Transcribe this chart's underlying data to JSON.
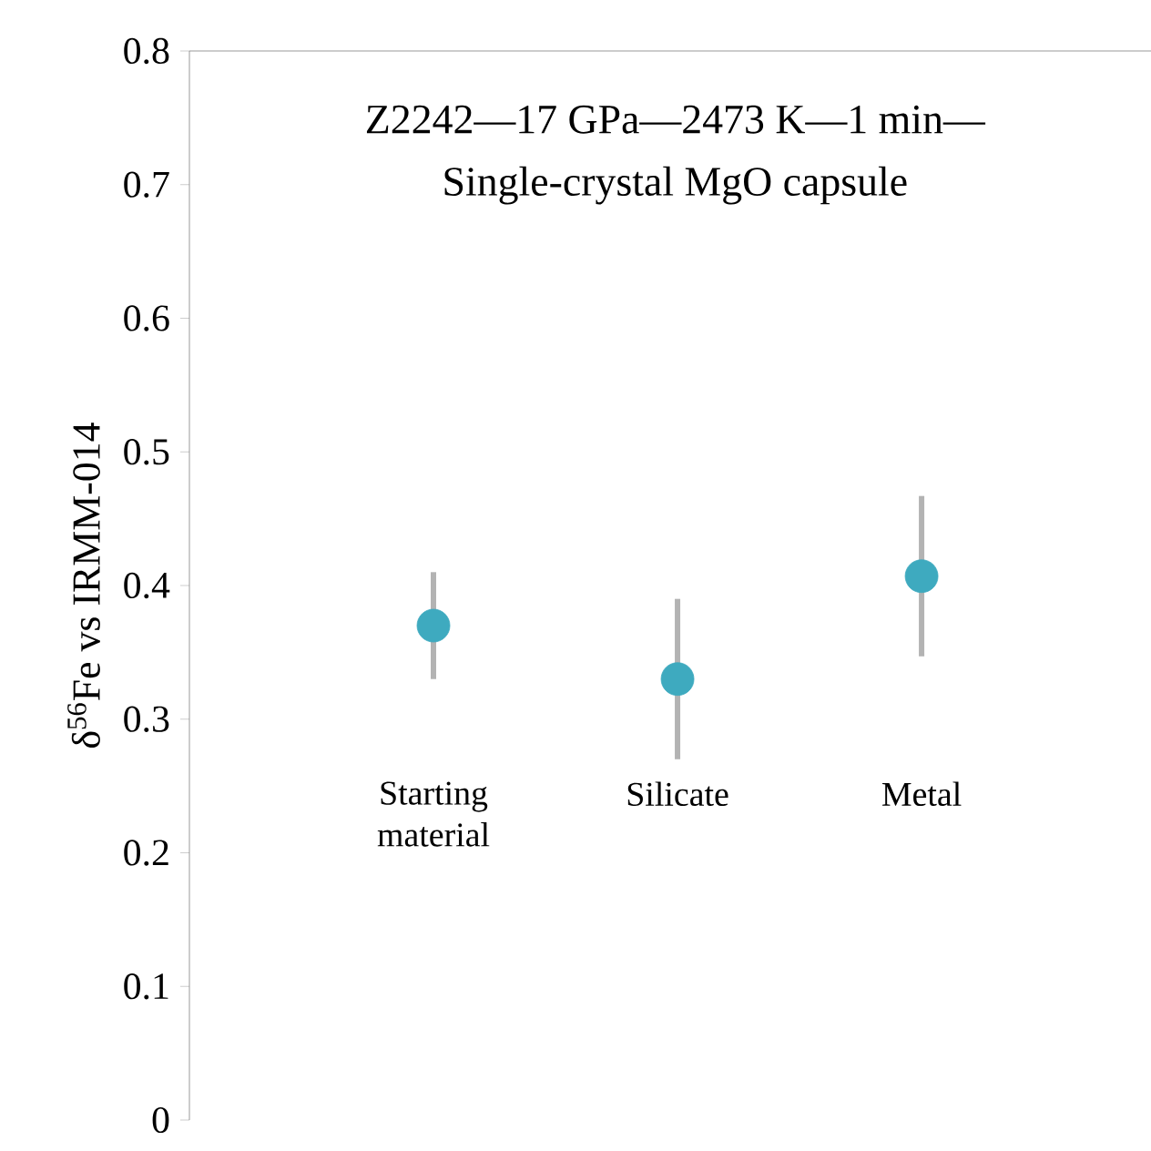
{
  "chart_data": {
    "type": "scatter",
    "title": "Z2242—17 GPa—2473 K—1 min—",
    "subtitle": "Single-crystal MgO capsule",
    "ylabel": "δ$^{56}$Fe vs IRMM-014",
    "categories": [
      "Starting material",
      "Silicate",
      "Metal"
    ],
    "values": [
      0.37,
      0.33,
      0.407
    ],
    "errors": [
      0.04,
      0.06,
      0.06
    ],
    "color": "#3eaabf",
    "ylim": [
      0,
      0.8
    ],
    "yticks": [
      0,
      0.1,
      0.2,
      0.3,
      0.4,
      0.5,
      0.6,
      0.7,
      0.8
    ],
    "grid": false
  }
}
